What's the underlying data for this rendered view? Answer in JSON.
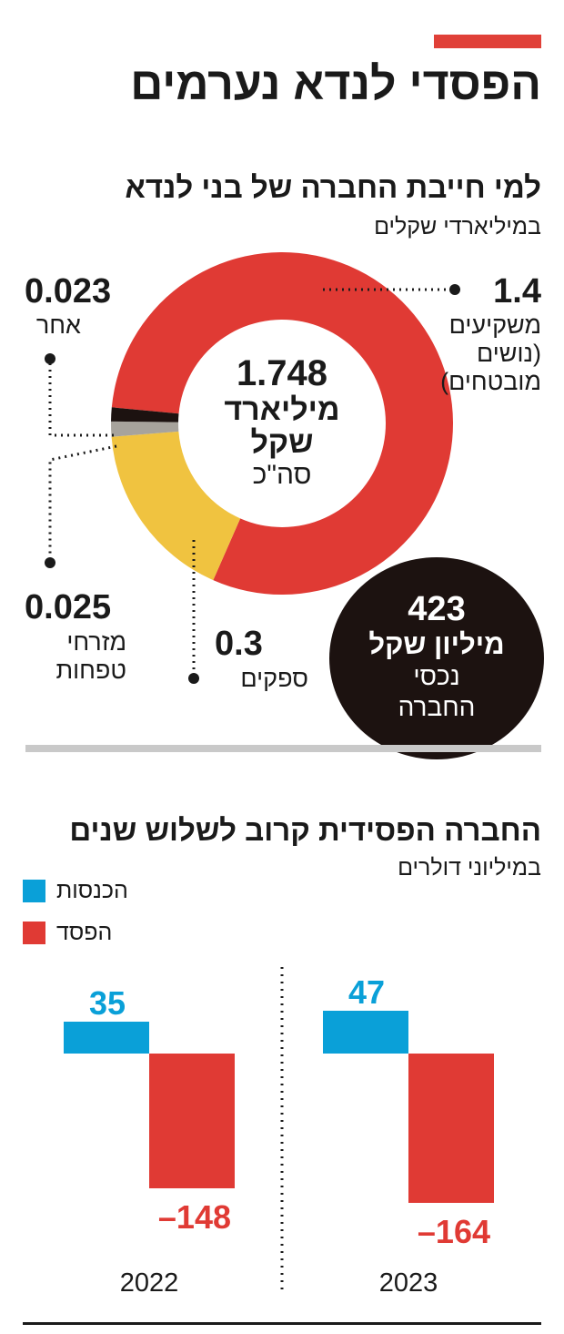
{
  "header": {
    "title": "הפסדי לנדא נערמים",
    "accent_color": "#e04038"
  },
  "debt_section": {
    "title": "למי חייבת החברה של בני לנדא",
    "subtitle": "במיליארדי שקלים",
    "total": {
      "value": "1.748",
      "unit": "מיליארד",
      "unit2": "שקל",
      "label": "סה\"כ"
    },
    "slices": [
      {
        "value": "1.4",
        "label_lines": [
          "משקיעים",
          "(נושים",
          "מובטחים)"
        ]
      },
      {
        "value": "0.3",
        "label_lines": [
          "ספקים"
        ]
      },
      {
        "value": "0.025",
        "label_lines": [
          "מזרחי",
          "טפחות"
        ]
      },
      {
        "value": "0.023",
        "label_lines": [
          "אחר"
        ]
      }
    ],
    "assets": {
      "value": "423",
      "unit": "מיליון שקל",
      "line1": "נכסי",
      "line2": "החברה"
    }
  },
  "loss_section": {
    "title": "החברה הפסידית קרוב לשלוש שנים",
    "subtitle": "במיליוני דולרים",
    "legend": [
      {
        "label": "הכנסות",
        "color": "#0aa0d8"
      },
      {
        "label": "הפסד",
        "color": "#e03a34"
      }
    ]
  },
  "chart_data": [
    {
      "type": "pie",
      "title": "למי חייבת החברה של בני לנדא",
      "subtitle": "במיליארדי שקלים",
      "categories": [
        "משקיעים (נושים מובטחים)",
        "ספקים",
        "מזרחי טפחות",
        "אחר"
      ],
      "values": [
        1.4,
        0.3,
        0.025,
        0.023
      ],
      "total": 1.748,
      "colors": [
        "#e03a34",
        "#f0c340",
        "#a7a39c",
        "#1c1210"
      ]
    },
    {
      "type": "bar",
      "title": "החברה הפסידית קרוב לשלוש שנים",
      "subtitle": "במיליוני דולרים",
      "categories": [
        "2022",
        "2023"
      ],
      "series": [
        {
          "name": "הכנסות",
          "values": [
            35,
            47
          ],
          "labels": [
            "35",
            "47"
          ],
          "color": "#0aa0d8"
        },
        {
          "name": "הפסד",
          "values": [
            -148,
            -164
          ],
          "labels": [
            "–148",
            "–164"
          ],
          "color": "#e03a34"
        }
      ]
    }
  ]
}
